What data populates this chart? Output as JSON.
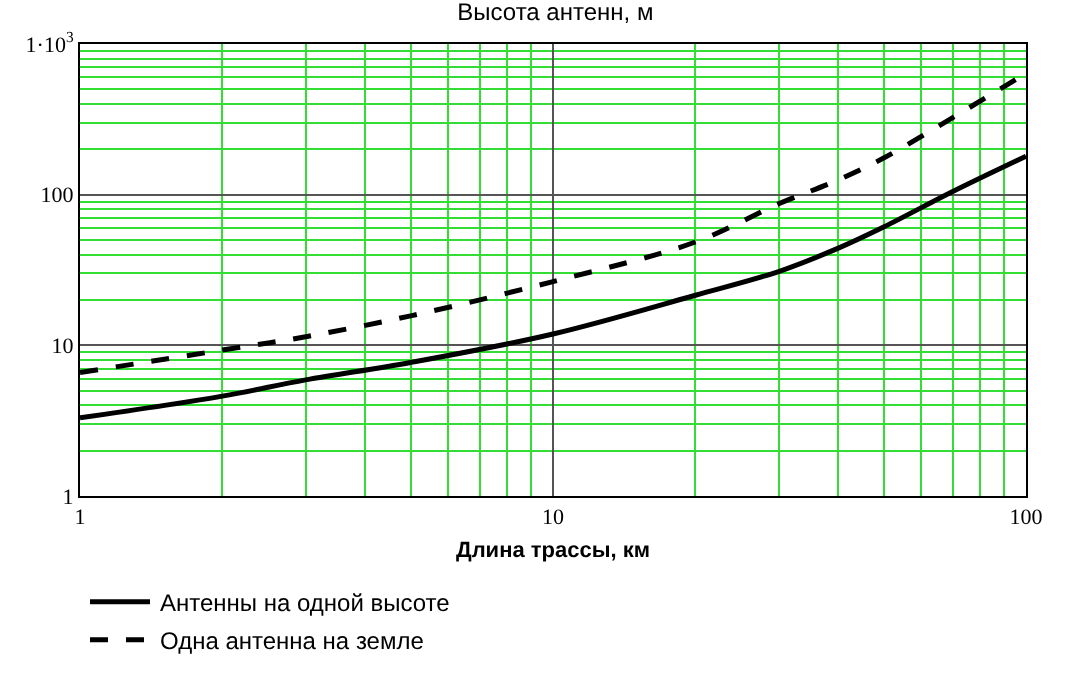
{
  "chart_data": {
    "type": "line",
    "title": "Высота антенн, м",
    "xlabel": "Длина трассы, км",
    "x": [
      1,
      2,
      3,
      5,
      10,
      20,
      30,
      40,
      50,
      70,
      100
    ],
    "series": [
      {
        "name": "Антенны на одной высоте",
        "color": "#000000",
        "line_style": "solid",
        "values": [
          3.3,
          4.6,
          5.9,
          7.7,
          11.9,
          21.5,
          30.9,
          44,
          61,
          105,
          180
        ]
      },
      {
        "name": "Одна антенна на земле",
        "color": "#000000",
        "line_style": "dashed",
        "values": [
          6.6,
          9.3,
          11.4,
          15.7,
          26.5,
          48.5,
          87,
          125,
          175,
          325,
          640
        ]
      }
    ],
    "log": "xy",
    "xlim": [
      1,
      100
    ],
    "ylim": [
      1,
      1000
    ],
    "xticks": [
      1,
      {
        "value": 2,
        "label": null
      },
      {
        "value": 3,
        "label": null
      },
      {
        "value": 4,
        "label": null
      },
      {
        "value": 5,
        "label": null
      },
      {
        "value": 6,
        "label": null
      },
      {
        "value": 7,
        "label": null
      },
      {
        "value": 8,
        "label": null
      },
      {
        "value": 9,
        "label": null
      },
      10,
      {
        "value": 20,
        "label": null
      },
      {
        "value": 30,
        "label": null
      },
      {
        "value": 40,
        "label": null
      },
      {
        "value": 50,
        "label": null
      },
      {
        "value": 60,
        "label": null
      },
      {
        "value": 70,
        "label": null
      },
      {
        "value": 80,
        "label": null
      },
      {
        "value": 90,
        "label": null
      },
      100
    ],
    "yticks": [
      1,
      {
        "value": 2,
        "label": null
      },
      {
        "value": 3,
        "label": null
      },
      {
        "value": 4,
        "label": null
      },
      {
        "value": 5,
        "label": null
      },
      {
        "value": 6,
        "label": null
      },
      {
        "value": 7,
        "label": null
      },
      {
        "value": 8,
        "label": null
      },
      {
        "value": 9,
        "label": null
      },
      10,
      {
        "value": 20,
        "label": null
      },
      {
        "value": 30,
        "label": null
      },
      {
        "value": 40,
        "label": null
      },
      {
        "value": 50,
        "label": null
      },
      {
        "value": 60,
        "label": null
      },
      {
        "value": 70,
        "label": null
      },
      {
        "value": 80,
        "label": null
      },
      {
        "value": 90,
        "label": null
      },
      100,
      {
        "value": 200,
        "label": null
      },
      {
        "value": 300,
        "label": null
      },
      {
        "value": 400,
        "label": null
      },
      {
        "value": 500,
        "label": null
      },
      {
        "value": 600,
        "label": null
      },
      {
        "value": 700,
        "label": null
      },
      {
        "value": 800,
        "label": null
      },
      {
        "value": 900,
        "label": null
      },
      {
        "value": 1000,
        "label": "1·10$^{3}$"
      }
    ],
    "grid": true,
    "legend": "bottom",
    "marker": "none"
  }
}
